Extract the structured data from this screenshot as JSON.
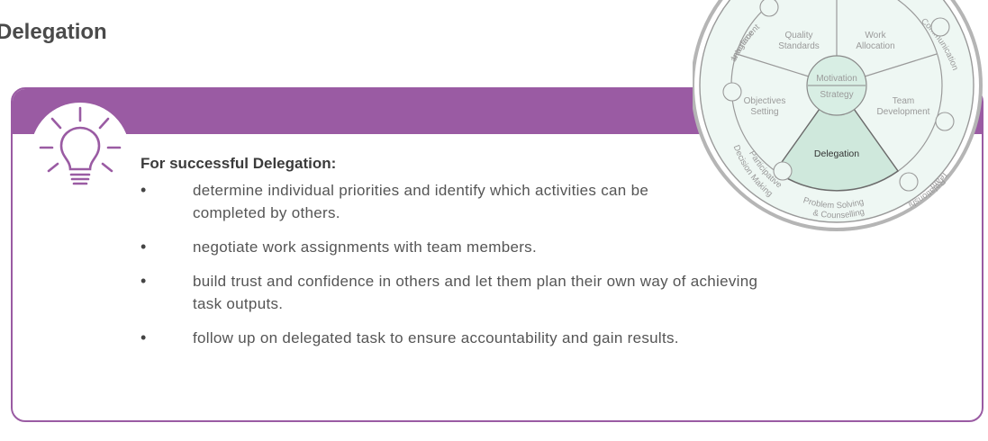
{
  "page": {
    "title": "Delegation"
  },
  "card": {
    "heading": "For successful Delegation:",
    "icon": "lightbulb-icon",
    "accent_color": "#9a5ba3",
    "bullets": [
      "determine individual priorities and identify which activities can be completed by others.",
      "negotiate work assignments with team members.",
      "build trust and confidence in others and let them plan their own way of achieving task outputs.",
      "follow up on delegated task to ensure accountability and gain results."
    ]
  },
  "wheel": {
    "highlight_color": "#cfe8dc",
    "center_top": "Motivation",
    "center_bottom": "Strategy",
    "inner_segments": {
      "quality_standards": [
        "Quality",
        "Standards"
      ],
      "work_allocation": [
        "Work",
        "Allocation"
      ],
      "team_development": [
        "Team",
        "Development"
      ],
      "delegation": "Delegation",
      "objectives_setting": [
        "Objectives",
        "Setting"
      ]
    },
    "outer_ring": {
      "interface_management": [
        "Interface",
        "Management"
      ],
      "communication": "Communication",
      "team_relationships": [
        "Team",
        "Relationships"
      ],
      "problem_solving": [
        "Problem Solving",
        "& Counselling"
      ],
      "participative_decision_making": [
        "Participative",
        "Decision Making"
      ]
    }
  }
}
